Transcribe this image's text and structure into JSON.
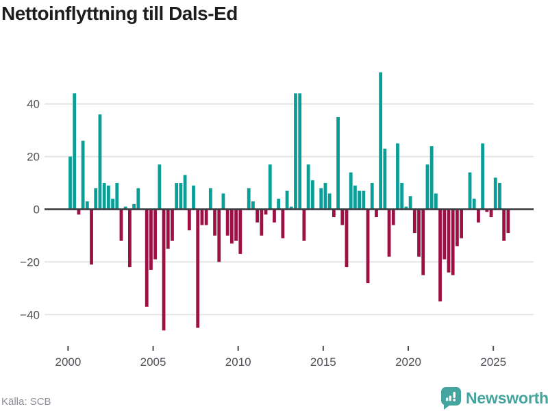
{
  "title": "Nettoinflyttning till Dals-Ed",
  "footer": {
    "source": "Källa: SCB"
  },
  "branding": {
    "name": "Newsworthy",
    "icon": "newsworthy-speech-bubble-chart-icon",
    "color": "#45a49e"
  },
  "colors": {
    "positive_bar": "#0a9e96",
    "negative_bar": "#9d1043",
    "axis_line": "#3a3a3e",
    "gridline": "#e4e4e7",
    "tick_text": "#4f5056"
  },
  "chart_data": {
    "type": "bar",
    "title": "Nettoinflyttning till Dals-Ed",
    "xlabel": "",
    "ylabel": "",
    "frequency": "quarterly",
    "period_start": "2000Q1",
    "period_end": "2025Q4",
    "grid": true,
    "ylim": [
      -50,
      56
    ],
    "y_tick_values": [
      40,
      20,
      0,
      -20,
      -40
    ],
    "y_tick_labels": [
      "40",
      "20",
      "0",
      "−20",
      "−40"
    ],
    "x_tick_years": [
      2000,
      2005,
      2010,
      2015,
      2020,
      2025
    ],
    "series_name": "Nettoinflyttning per kvartal",
    "values_by_year": {
      "2000": [
        20,
        44,
        -2,
        26
      ],
      "2001": [
        3,
        -21,
        8,
        36
      ],
      "2002": [
        10,
        9,
        4,
        10
      ],
      "2003": [
        -12,
        1,
        -22,
        2
      ],
      "2004": [
        8,
        0,
        -37,
        -23
      ],
      "2005": [
        -19,
        17,
        -46,
        -15
      ],
      "2006": [
        -12,
        10,
        10,
        13
      ],
      "2007": [
        -8,
        9,
        -45,
        -6
      ],
      "2008": [
        -6,
        8,
        -10,
        -20
      ],
      "2009": [
        6,
        -10,
        -13,
        -12
      ],
      "2010": [
        -17,
        0,
        8,
        3
      ],
      "2011": [
        -5,
        -10,
        -2,
        17
      ],
      "2012": [
        -5,
        4,
        -11,
        7
      ],
      "2013": [
        1,
        44,
        44,
        -12
      ],
      "2014": [
        17,
        11,
        0,
        8
      ],
      "2015": [
        10,
        6,
        -3,
        35
      ],
      "2016": [
        -6,
        -22,
        14,
        9
      ],
      "2017": [
        7,
        7,
        -28,
        10
      ],
      "2018": [
        -3,
        52,
        23,
        -18
      ],
      "2019": [
        -6,
        25,
        10,
        1
      ],
      "2020": [
        5,
        -9,
        -18,
        -25
      ],
      "2021": [
        17,
        24,
        6,
        -35
      ],
      "2022": [
        -19,
        -24,
        -25,
        -14
      ],
      "2023": [
        -11,
        0,
        14,
        4
      ],
      "2024": [
        -5,
        25,
        -1,
        -3
      ],
      "2025": [
        12,
        10,
        -12,
        -9
      ]
    }
  }
}
